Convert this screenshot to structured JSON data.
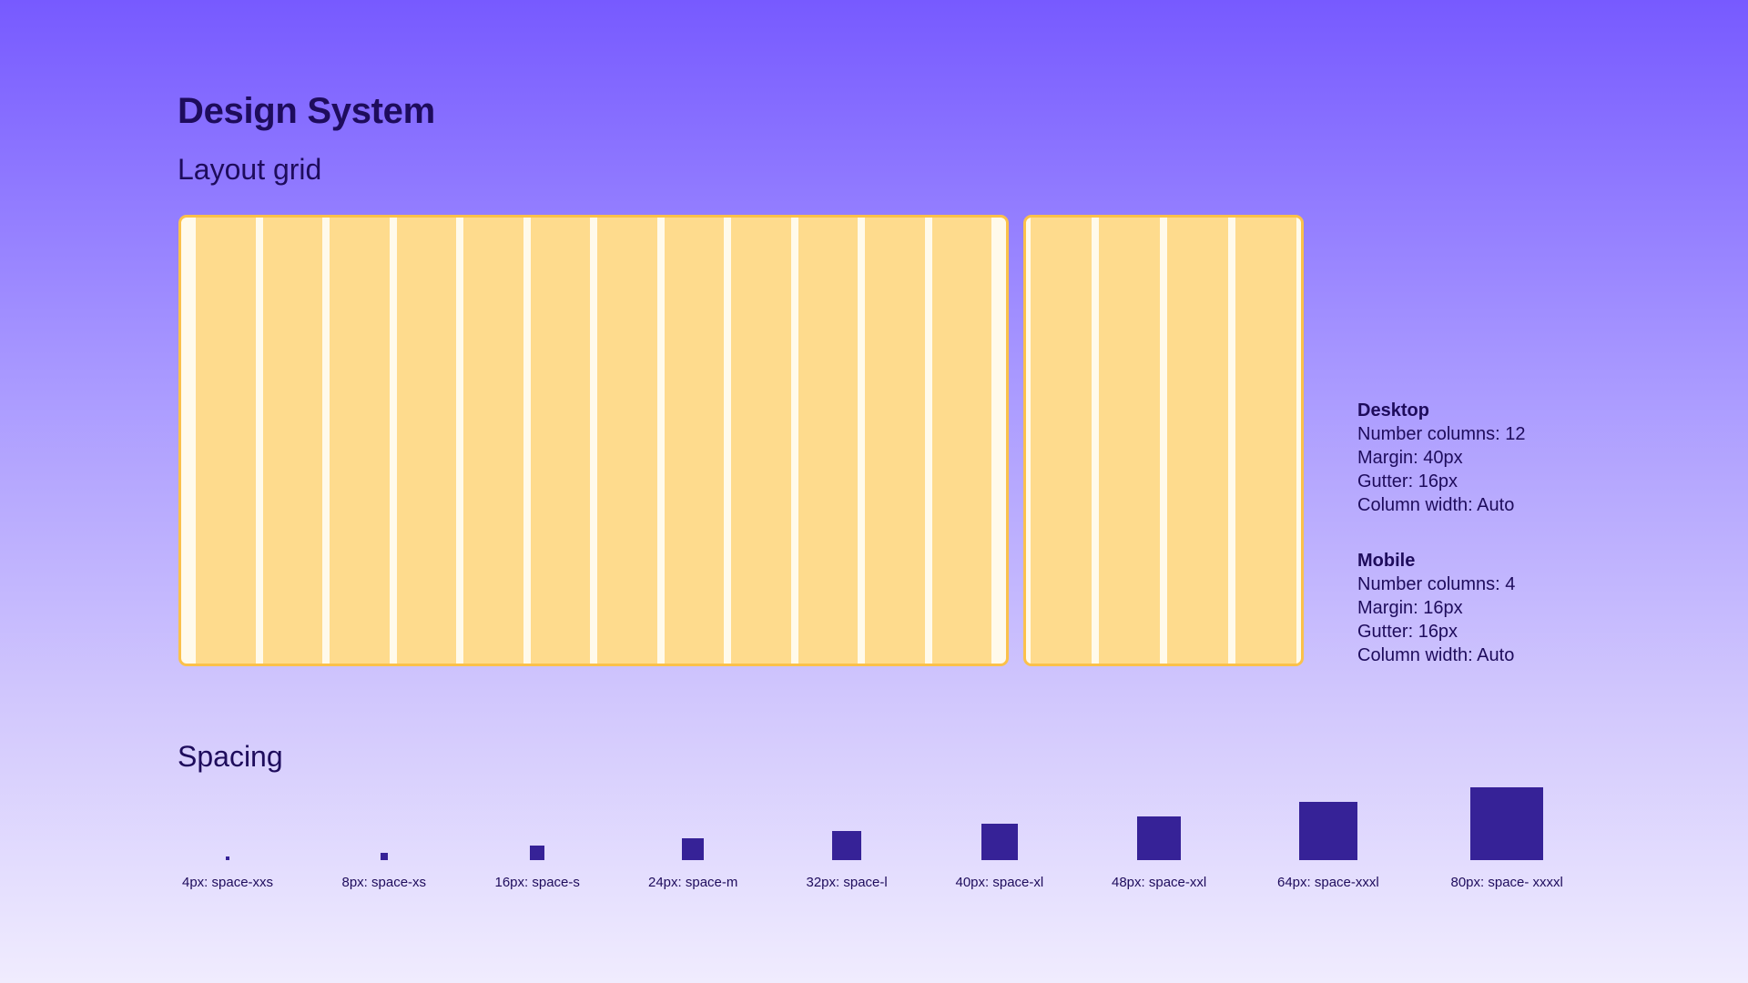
{
  "page_title": "Design System",
  "layout_grid": {
    "title": "Layout grid",
    "desktop": {
      "heading": "Desktop",
      "columns": 12,
      "lines": [
        "Number columns: 12",
        "Margin: 40px",
        "Gutter: 16px",
        "Column width: Auto"
      ]
    },
    "mobile": {
      "heading": "Mobile",
      "columns": 4,
      "lines": [
        "Number columns: 4",
        "Margin: 16px",
        "Gutter: 16px",
        "Column width: Auto"
      ]
    }
  },
  "spacing": {
    "title": "Spacing",
    "items": [
      {
        "size": 4,
        "label": "4px: space-xxs"
      },
      {
        "size": 8,
        "label": "8px: space-xs"
      },
      {
        "size": 16,
        "label": "16px: space-s"
      },
      {
        "size": 24,
        "label": "24px: space-m"
      },
      {
        "size": 32,
        "label": "32px: space-l"
      },
      {
        "size": 40,
        "label": "40px: space-xl"
      },
      {
        "size": 48,
        "label": "48px: space-xxl"
      },
      {
        "size": 64,
        "label": "64px: space-xxxl"
      },
      {
        "size": 80,
        "label": "80px: space- xxxxl"
      }
    ]
  },
  "colors": {
    "heading": "#1E0C5C",
    "grid_column": "#FEDB8D",
    "grid_gutter": "#FFFAEB",
    "grid_border": "#FBC14A",
    "swatch": "#362297"
  }
}
